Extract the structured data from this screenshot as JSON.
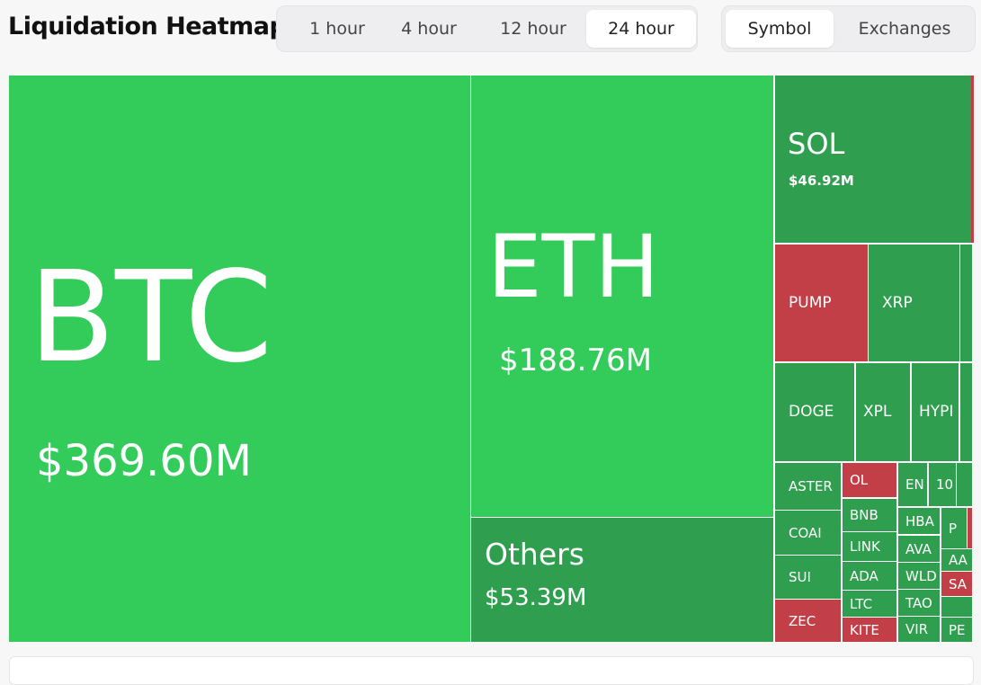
{
  "header": {
    "title": "Liquidation Heatmap",
    "timeframes": [
      "1 hour",
      "4 hour",
      "12 hour",
      "24 hour"
    ],
    "views": [
      "Symbol",
      "Exchanges"
    ]
  },
  "treemap": {
    "cells": [
      {
        "label": "BTC",
        "value_label": "$369.60M",
        "color": "#33cc5a"
      },
      {
        "label": "ETH",
        "value_label": "$188.76M",
        "color": "#33cc5a"
      },
      {
        "label": "Others",
        "value_label": "$53.39M",
        "color": "#2f9f4f"
      },
      {
        "label": "SOL",
        "value_label": "$46.92M",
        "color": "#2f9f4f"
      },
      {
        "label": "PUMP",
        "color": "#c23f48"
      },
      {
        "label": "XRP",
        "color": "#2f9f4f"
      },
      {
        "label": "DOGE",
        "color": "#2f9f4f"
      },
      {
        "label": "XPL",
        "color": "#2f9f4f"
      },
      {
        "label": "HYPI",
        "color": "#2f9f4f"
      },
      {
        "label": "ASTER",
        "color": "#2f9f4f"
      },
      {
        "label": "COAI",
        "color": "#2f9f4f"
      },
      {
        "label": "SUI",
        "color": "#2f9f4f"
      },
      {
        "label": "ZEC",
        "color": "#c23f48"
      },
      {
        "label": "OL",
        "color": "#c23f48"
      },
      {
        "label": "BNB",
        "color": "#2f9f4f"
      },
      {
        "label": "LINK",
        "color": "#2f9f4f"
      },
      {
        "label": "ADA",
        "color": "#2f9f4f"
      },
      {
        "label": "LTC",
        "color": "#2f9f4f"
      },
      {
        "label": "KITE",
        "color": "#c23f48"
      },
      {
        "label": "EN",
        "color": "#2f9f4f"
      },
      {
        "label": "10",
        "color": "#2f9f4f"
      },
      {
        "label": "HBA",
        "color": "#2f9f4f"
      },
      {
        "label": "AVA",
        "color": "#2f9f4f"
      },
      {
        "label": "WLD",
        "color": "#2f9f4f"
      },
      {
        "label": "TAO",
        "color": "#2f9f4f"
      },
      {
        "label": "VIR",
        "color": "#2f9f4f"
      },
      {
        "label": "P",
        "color": "#2f9f4f"
      },
      {
        "label": "AA",
        "color": "#2f9f4f"
      },
      {
        "label": "SA",
        "color": "#c23f48"
      },
      {
        "label": "PE",
        "color": "#2f9f4f"
      }
    ]
  }
}
